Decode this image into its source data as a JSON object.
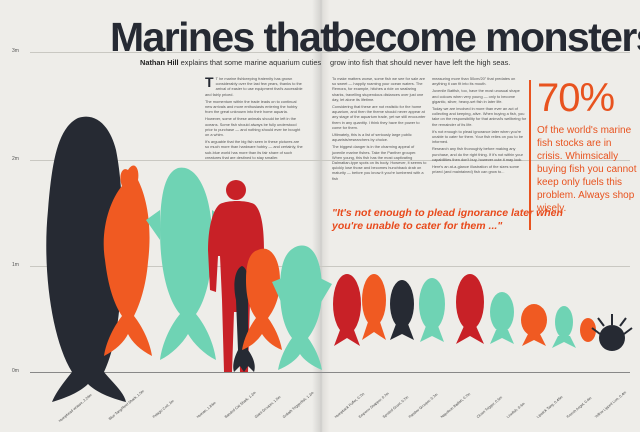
{
  "headline": {
    "left": "Marines that",
    "right": "become monsters"
  },
  "strap": {
    "author": "Nathan Hill",
    "left_text": "explains that some marine aquarium cuties",
    "right_text": "grow into fish that should never have left the high seas."
  },
  "columns": {
    "c1": [
      "T he marine fishkeeping fraternity has grown considerably over the last few years, thanks to the arrival of easier to use equipment that's accessible and fairly priced.",
      "The momentum within the trade leads on to continual new arrivals and more enthusiasts entering the hobby from the great unknown into their home aquaria.",
      "However, some of these animals should be left in the oceans. Some fish should always be fully understood prior to purchase — and nothing should ever be bought on a whim.",
      "It's arguable that the big fish seen in these pictures are so much more than hardware hobby — and certainly, the sub-blue world has more than its fair share of such creatures that are destined to stay smaller."
    ],
    "c2": [
      "To make matters worse, some fish we see for sale are so sweet — happily roaming your ocean waters. The Remora, for example, hitches a ride on seafaring sharks, travelling stupendous distances over just one day, let alone its lifetime.",
      "Considering that these are not realistic for the home aquarium, and then the theme should never appear at any stage of the aquarium trade, yet we still encounter them in any quantity. I think they have the power to come for them.",
      "Ultimately, this is a list of seriously large public aquarists/researchers by choice.",
      "The biggest danger is in the charming appeal of juvenile marine fishes. Take the Panther grouper. When young, this fish has the most captivating Dalmatian-type spots on its body. However, it seems to quickly lose those and becomes hunchback drab on maturity — before you know it you're lumbered with a fish"
    ],
    "c3": [
      "measuring more than 50cm/20\" that predates on anything it can fit into its mouth.",
      "Juvenile Batfish, too, have the most unusual shape and colours when very young — only to become gigantic, silver, heavy-set fish in later life.",
      "Today we are involved in more than ever an act of collecting and keeping, alive. When buying a fish, you take on the responsibility for that animal's wellbeing for the remainder of its life.",
      "It's not enough to plead ignorance later when you're unable to cater for them. Your fish relies on you to be informed.",
      "Research any fish thoroughly before making any purchase, and do the right thing. If it's not within your capabilities then don't buy, however cute it may look.",
      "Here's an at-a-glance illustration of the sizes some prized (and maintained) fish can grow to..."
    ]
  },
  "quote": "\"It's not enough to plead ignorance later when you're unable to cater for them ...\"",
  "stat": {
    "number": "70%",
    "text": "Of the world's marine fish stocks are in crisis. Whimsically buying fish you cannot keep only fuels this problem. Always shop wisely."
  },
  "scale": {
    "labels": [
      "3m",
      "2m",
      "1m",
      "0m"
    ]
  },
  "fish_labels": [
    "Humphead wrasse, 2.29m",
    "Blue Tang/Reef Shark, 1.5m",
    "Pelagic Cod, 2m",
    "Human, 1.83m",
    "Banded Cat Shark, 1.2m",
    "Giant Grouper, 1.5m",
    "Goliath Triggerfish, 1.2m",
    "Humpback Puffer, 0.7m",
    "Emperor Snapper, 0.7m",
    "Spotted Grunt, 0.7m",
    "Panther Grouper, 0.7m",
    "Napoleon Batfish, 0.7m",
    "Clown Trigger, 0.5m",
    "Lionfish, 0.4m",
    "Lipstick Tang, 0.45m",
    "French Angel, 0.4m",
    "Yellow Lipped Lion, 0.4m"
  ],
  "colors": {
    "accent": "#e8531f",
    "navy": "#262a33",
    "mint": "#6fd3b4",
    "red": "#c82127",
    "orange": "#f05a22"
  }
}
